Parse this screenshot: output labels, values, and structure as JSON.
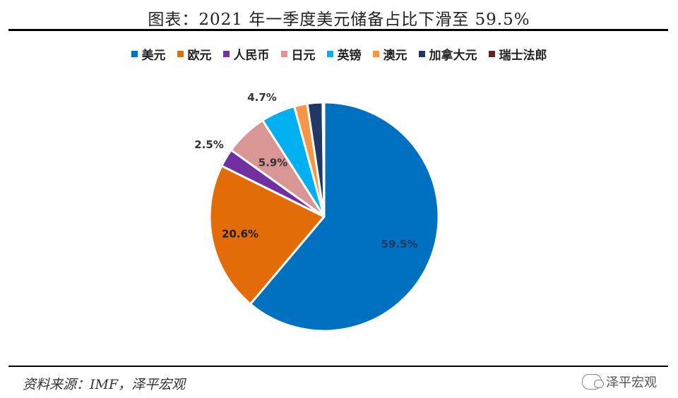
{
  "title": "图表：2021 年一季度美元储备占比下滑至 59.5%",
  "source": "资料来源：IMF，泽平宏观",
  "watermark": "泽平宏观",
  "chart_data": {
    "type": "pie",
    "title": "图表：2021 年一季度美元储备占比下滑至 59.5%",
    "legend_position": "top",
    "slices": [
      {
        "name": "美元",
        "value": 59.5,
        "label": "59.5%",
        "color": "#0070c0"
      },
      {
        "name": "欧元",
        "value": 20.6,
        "label": "20.6%",
        "color": "#e36c09"
      },
      {
        "name": "人民币",
        "value": 2.5,
        "label": "2.5%",
        "color": "#7030a0"
      },
      {
        "name": "日元",
        "value": 5.9,
        "label": "5.9%",
        "color": "#d99694"
      },
      {
        "name": "英镑",
        "value": 4.7,
        "label": "4.7%",
        "color": "#00b0f0"
      },
      {
        "name": "澳元",
        "value": 1.8,
        "label": "",
        "color": "#f79646"
      },
      {
        "name": "加拿大元",
        "value": 2.1,
        "label": "",
        "color": "#1f3864"
      },
      {
        "name": "瑞士法郎",
        "value": 0.2,
        "label": "",
        "color": "#632523"
      }
    ]
  }
}
